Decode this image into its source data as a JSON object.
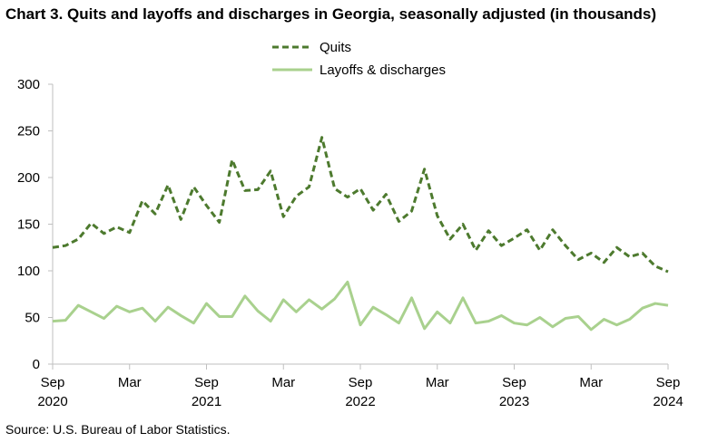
{
  "title": "Chart 3. Quits and layoffs and discharges in Georgia, seasonally adjusted (in thousands)",
  "source": "Source: U.S. Bureau of Labor Statistics.",
  "colors": {
    "quits": "#4d7a2e",
    "layoffs": "#a9d18e",
    "axis": "#bfbfbf"
  },
  "chart_data": {
    "type": "line",
    "ylim": [
      0,
      300
    ],
    "yticks": [
      0,
      50,
      100,
      150,
      200,
      250,
      300
    ],
    "grid": false,
    "legend_position": "top",
    "x_months": [
      "2020-09",
      "2020-10",
      "2020-11",
      "2020-12",
      "2021-01",
      "2021-02",
      "2021-03",
      "2021-04",
      "2021-05",
      "2021-06",
      "2021-07",
      "2021-08",
      "2021-09",
      "2021-10",
      "2021-11",
      "2021-12",
      "2022-01",
      "2022-02",
      "2022-03",
      "2022-04",
      "2022-05",
      "2022-06",
      "2022-07",
      "2022-08",
      "2022-09",
      "2022-10",
      "2022-11",
      "2022-12",
      "2023-01",
      "2023-02",
      "2023-03",
      "2023-04",
      "2023-05",
      "2023-06",
      "2023-07",
      "2023-08",
      "2023-09",
      "2023-10",
      "2023-11",
      "2023-12",
      "2024-01",
      "2024-02",
      "2024-03",
      "2024-04",
      "2024-05",
      "2024-06",
      "2024-07",
      "2024-08",
      "2024-09"
    ],
    "xtick_labels": [
      {
        "month": "2020-09",
        "line1": "Sep",
        "line2": "2020"
      },
      {
        "month": "2021-03",
        "line1": "Mar",
        "line2": ""
      },
      {
        "month": "2021-09",
        "line1": "Sep",
        "line2": "2021"
      },
      {
        "month": "2022-03",
        "line1": "Mar",
        "line2": ""
      },
      {
        "month": "2022-09",
        "line1": "Sep",
        "line2": "2022"
      },
      {
        "month": "2023-03",
        "line1": "Mar",
        "line2": ""
      },
      {
        "month": "2023-09",
        "line1": "Sep",
        "line2": "2023"
      },
      {
        "month": "2024-03",
        "line1": "Mar",
        "line2": ""
      },
      {
        "month": "2024-09",
        "line1": "Sep",
        "line2": "2024"
      }
    ],
    "series": [
      {
        "name": "Quits",
        "style": "dashed",
        "values": [
          125,
          127,
          134,
          151,
          140,
          147,
          141,
          175,
          161,
          192,
          155,
          190,
          170,
          152,
          219,
          186,
          187,
          207,
          158,
          180,
          190,
          243,
          188,
          179,
          188,
          165,
          182,
          153,
          164,
          209,
          159,
          134,
          150,
          122,
          143,
          127,
          135,
          144,
          122,
          144,
          127,
          112,
          119,
          109,
          125,
          115,
          119,
          105,
          99
        ]
      },
      {
        "name": "Layoffs & discharges",
        "style": "solid",
        "values": [
          46,
          47,
          63,
          56,
          49,
          62,
          56,
          60,
          46,
          61,
          52,
          44,
          65,
          51,
          51,
          73,
          57,
          46,
          69,
          56,
          69,
          59,
          70,
          88,
          42,
          61,
          53,
          44,
          71,
          38,
          56,
          44,
          71,
          44,
          46,
          52,
          44,
          42,
          50,
          40,
          49,
          51,
          37,
          48,
          42,
          48,
          60,
          65,
          63
        ]
      }
    ]
  }
}
